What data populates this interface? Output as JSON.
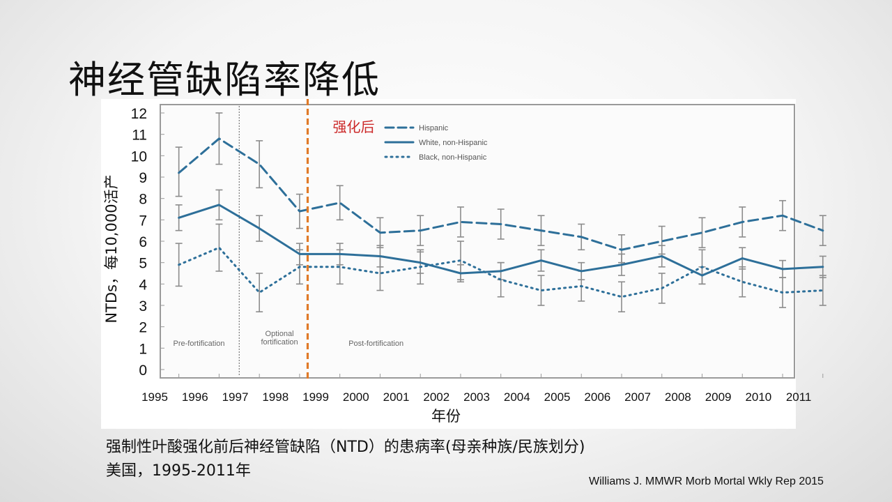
{
  "slide": {
    "title": "神经管缺陷率降低",
    "caption_line1": "强制性叶酸强化前后神经管缺陷（NTD）的患病率(母亲种族/民族划分)",
    "caption_line2": "美国，1995-2011年",
    "source": "Williams J. MMWR Morb Mortal Wkly Rep 2015"
  },
  "colors": {
    "series": "#2d6f99",
    "error_bar": "#8c8c8c",
    "marker_line": "#e07a28",
    "marker_text": "#cc2a2a",
    "frame": "#9a9a9a"
  },
  "chart_data": {
    "type": "line",
    "xlabel": "年份",
    "ylabel": "NTDs，每10,000活产",
    "x": [
      1995,
      1996,
      1997,
      1998,
      1999,
      2000,
      2001,
      2002,
      2003,
      2004,
      2005,
      2006,
      2007,
      2008,
      2009,
      2010,
      2011
    ],
    "x_tick_labels": [
      "1995",
      "1996",
      "1997",
      "1998",
      "1999",
      "2000",
      "2001",
      "2002",
      "2003",
      "2004",
      "2005",
      "2006",
      "2007",
      "2008",
      "2009",
      "2010",
      "2011"
    ],
    "y_tick_labels": [
      "0",
      "1",
      "2",
      "3",
      "4",
      "5",
      "6",
      "7",
      "8",
      "9",
      "10",
      "11",
      "12"
    ],
    "xlim": [
      1995,
      2011.5
    ],
    "ylim": [
      0,
      12
    ],
    "grid": false,
    "legend_position": "top-center",
    "series": [
      {
        "name": "Hispanic",
        "style": "dashed",
        "x": [
          1995.6,
          1996.6,
          1997.6,
          1998.6,
          1999.6,
          2000.6,
          2001.6,
          2002.6,
          2003.6,
          2004.6,
          2005.6,
          2006.6,
          2007.6,
          2008.6,
          2009.6,
          2010.6,
          2011.6
        ],
        "y": [
          9.2,
          10.8,
          9.6,
          7.4,
          7.8,
          6.4,
          6.5,
          6.9,
          6.8,
          6.5,
          6.2,
          5.6,
          6.0,
          6.4,
          6.9,
          7.2,
          6.5
        ],
        "err_low": [
          8.1,
          9.6,
          8.5,
          6.6,
          7.0,
          5.7,
          5.8,
          6.2,
          6.1,
          5.8,
          5.6,
          5.0,
          5.4,
          5.7,
          6.2,
          6.5,
          5.8
        ],
        "err_high": [
          10.4,
          12.0,
          10.7,
          8.2,
          8.6,
          7.1,
          7.2,
          7.6,
          7.5,
          7.2,
          6.8,
          6.3,
          6.7,
          7.1,
          7.6,
          7.9,
          7.2
        ]
      },
      {
        "name": "White, non-Hispanic",
        "style": "solid",
        "x": [
          1995.6,
          1996.6,
          1997.6,
          1998.6,
          1999.6,
          2000.6,
          2001.6,
          2002.6,
          2003.6,
          2004.6,
          2005.6,
          2006.6,
          2007.6,
          2008.6,
          2009.6,
          2010.6,
          2011.6
        ],
        "y": [
          7.1,
          7.7,
          6.6,
          5.4,
          5.4,
          5.3,
          5.0,
          4.5,
          4.6,
          5.1,
          4.6,
          4.9,
          5.3,
          4.4,
          5.2,
          4.7,
          4.8
        ],
        "err_low": [
          6.5,
          7.0,
          6.0,
          4.9,
          4.9,
          4.8,
          4.5,
          4.1,
          4.2,
          4.6,
          4.2,
          4.4,
          4.8,
          4.0,
          4.7,
          4.3,
          4.3
        ],
        "err_high": [
          7.7,
          8.4,
          7.2,
          5.9,
          5.9,
          5.8,
          5.5,
          4.9,
          5.0,
          5.6,
          5.0,
          5.4,
          5.8,
          4.8,
          5.7,
          5.1,
          5.3
        ]
      },
      {
        "name": "Black, non-Hispanic",
        "style": "dotted",
        "x": [
          1995.6,
          1996.6,
          1997.6,
          1998.6,
          1999.6,
          2000.6,
          2001.6,
          2002.6,
          2003.6,
          2004.6,
          2005.6,
          2006.6,
          2007.6,
          2008.6,
          2009.6,
          2010.6,
          2011.6
        ],
        "y": [
          4.9,
          5.7,
          3.6,
          4.8,
          4.8,
          4.5,
          4.8,
          5.1,
          4.2,
          3.7,
          3.9,
          3.4,
          3.8,
          4.8,
          4.1,
          3.6,
          3.7
        ],
        "err_low": [
          3.9,
          4.6,
          2.7,
          4.0,
          4.0,
          3.7,
          4.0,
          4.2,
          3.4,
          3.0,
          3.2,
          2.7,
          3.1,
          4.0,
          3.4,
          2.9,
          3.0
        ],
        "err_high": [
          5.9,
          6.8,
          4.5,
          5.6,
          5.6,
          5.3,
          5.6,
          6.0,
          5.0,
          4.4,
          4.6,
          4.1,
          4.5,
          5.6,
          4.8,
          4.3,
          4.4
        ]
      }
    ],
    "period_labels": [
      {
        "text": "Pre-fortification",
        "x": 1996.1
      },
      {
        "text": "Optional\nfortification",
        "x": 1998.1
      },
      {
        "text": "Post-fortification",
        "x": 2000.5
      }
    ],
    "period_divider_x": 1997.1,
    "annotation": {
      "text": "强化后",
      "x": 1998.8
    }
  }
}
